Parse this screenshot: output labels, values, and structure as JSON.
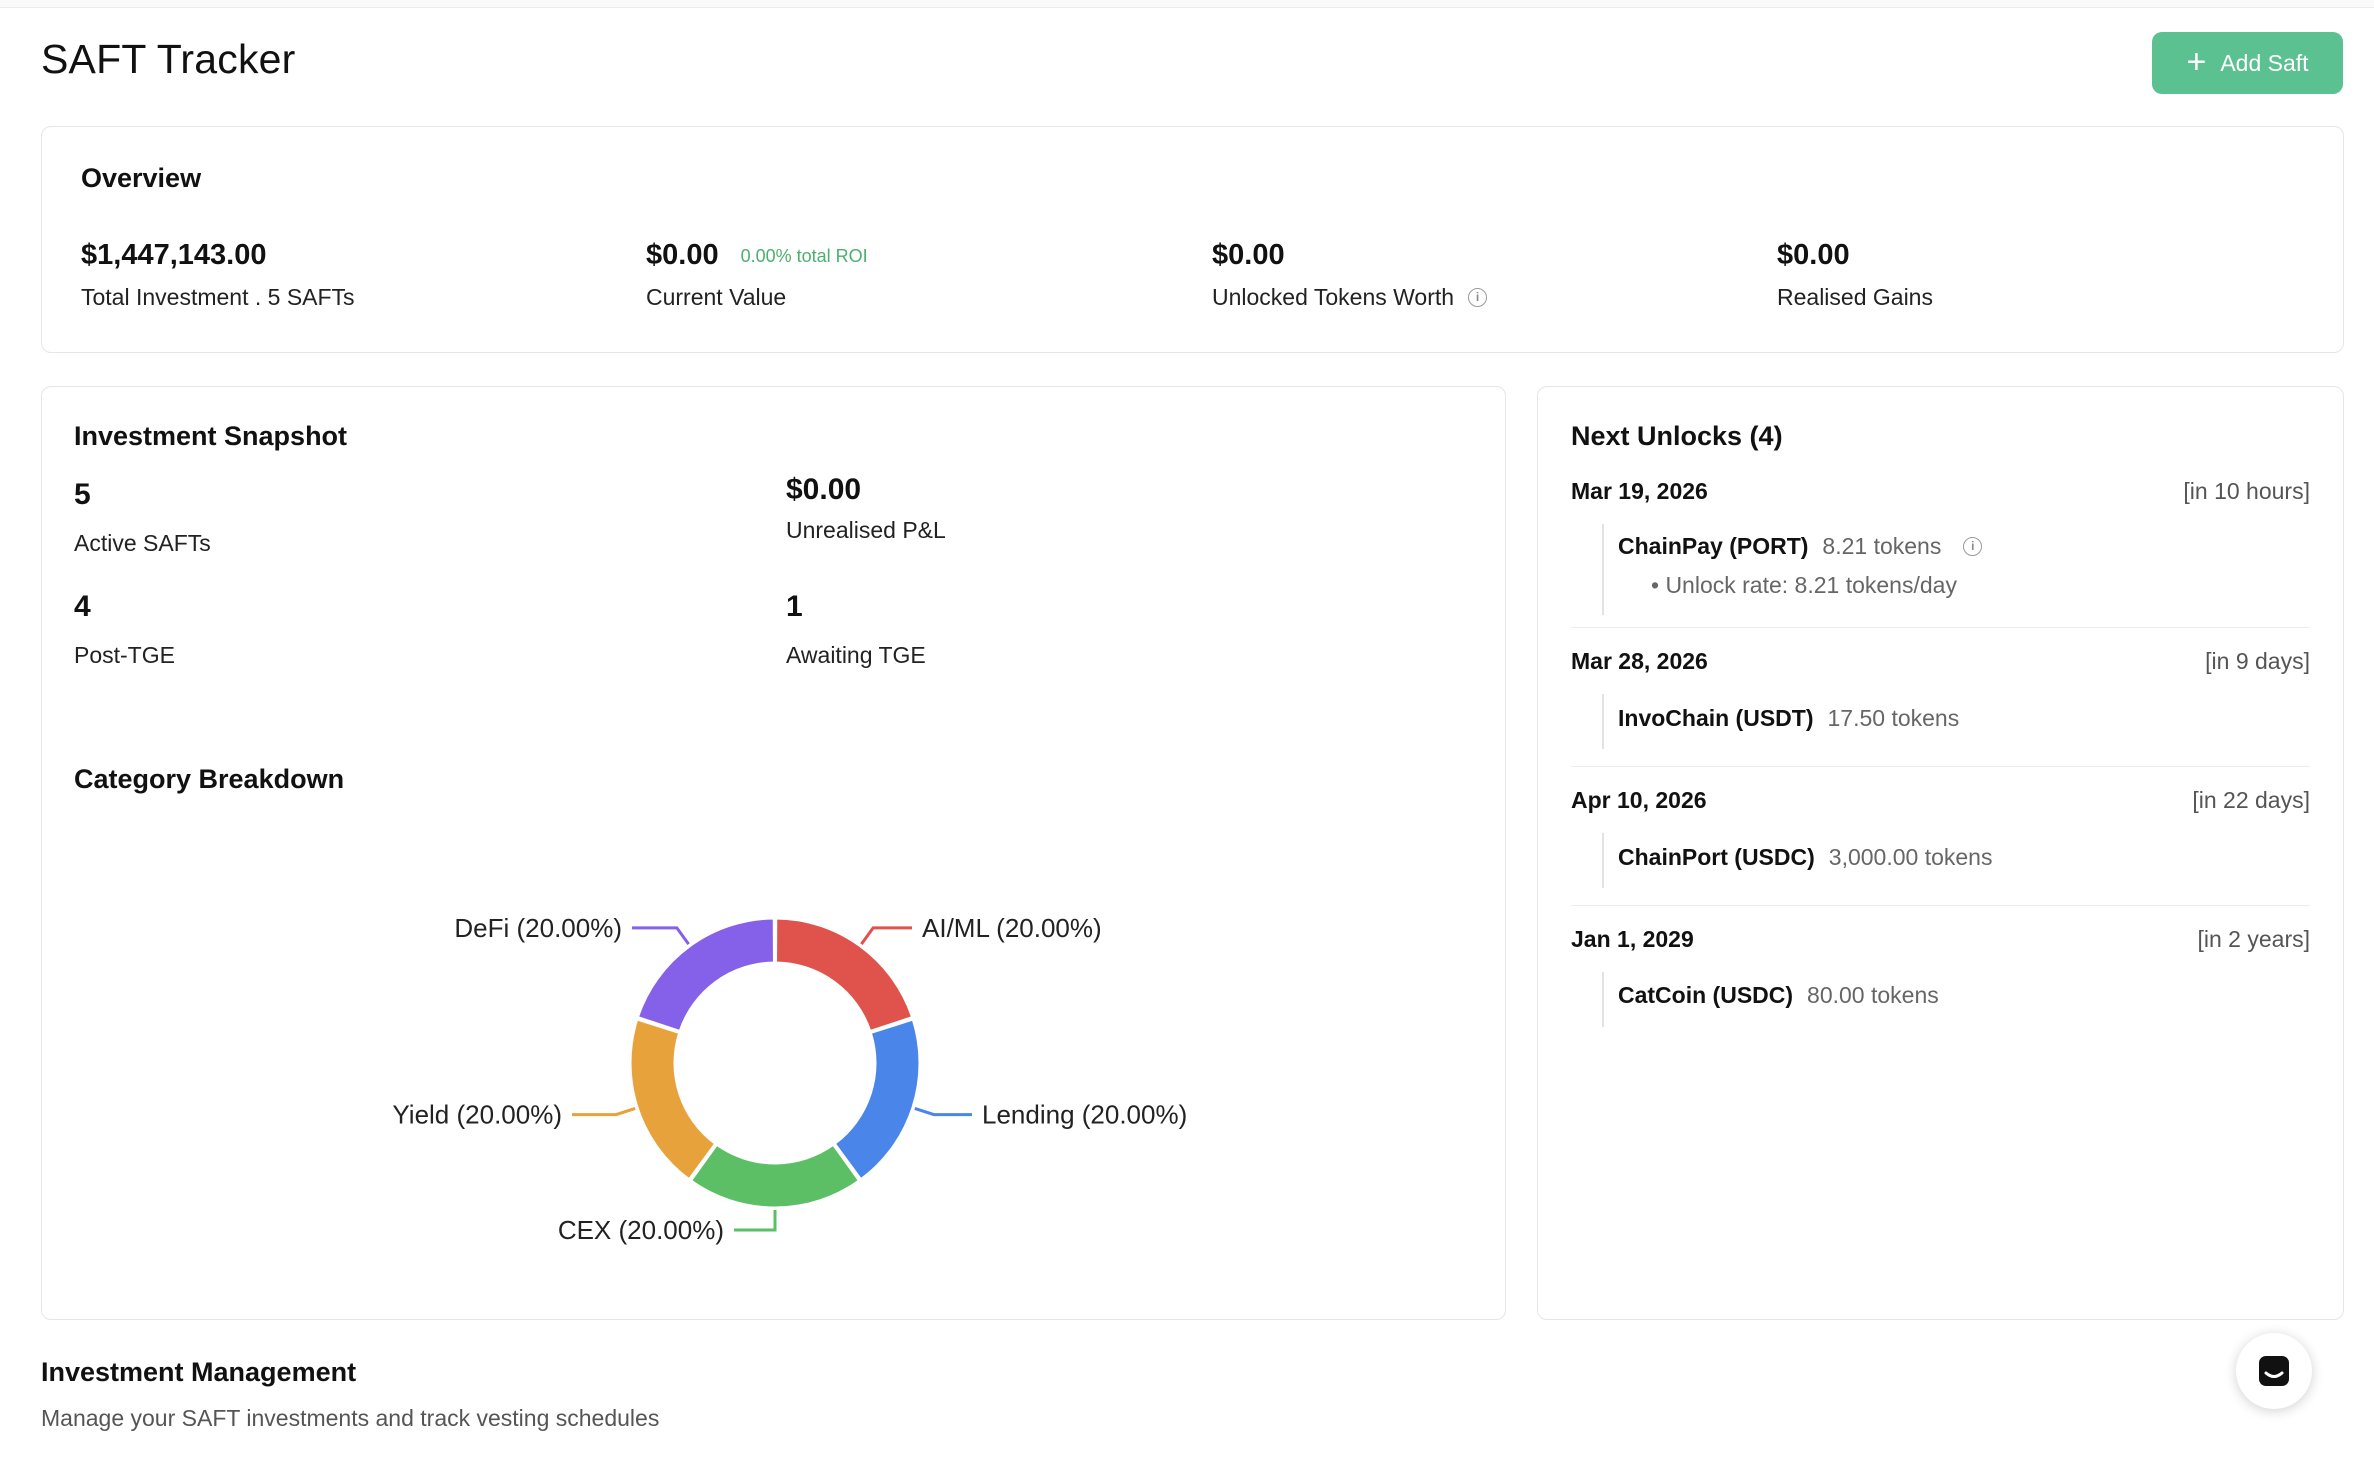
{
  "header": {
    "title": "SAFT Tracker",
    "add_button_label": "Add Saft"
  },
  "overview": {
    "title": "Overview",
    "stats": [
      {
        "value": "$1,447,143.00",
        "label": "Total Investment . 5 SAFTs"
      },
      {
        "value": "$0.00",
        "badge": "0.00% total ROI",
        "label": "Current Value"
      },
      {
        "value": "$0.00",
        "label": "Unlocked Tokens Worth"
      },
      {
        "value": "$0.00",
        "label": "Realised Gains"
      }
    ]
  },
  "snapshot": {
    "title": "Investment Snapshot",
    "active_safts": {
      "value": "5",
      "label": "Active SAFTs"
    },
    "unrealised_pl": {
      "value": "$0.00",
      "label": "Unrealised P&L"
    },
    "post_tge": {
      "value": "4",
      "label": "Post-TGE"
    },
    "awaiting_tge": {
      "value": "1",
      "label": "Awaiting TGE"
    }
  },
  "category_breakdown": {
    "title": "Category Breakdown",
    "slices": [
      {
        "label": "AI/ML (20.00%)",
        "color": "#e0524c"
      },
      {
        "label": "Lending (20.00%)",
        "color": "#4a86ea"
      },
      {
        "label": "CEX (20.00%)",
        "color": "#5cbf66"
      },
      {
        "label": "Yield (20.00%)",
        "color": "#e8a23c"
      },
      {
        "label": "DeFi (20.00%)",
        "color": "#8560e8"
      }
    ]
  },
  "chart_data": {
    "type": "pie",
    "categories": [
      "AI/ML",
      "Lending",
      "CEX",
      "Yield",
      "DeFi"
    ],
    "values": [
      20.0,
      20.0,
      20.0,
      20.0,
      20.0
    ],
    "title": "Category Breakdown",
    "donut": true
  },
  "unlocks": {
    "title": "Next Unlocks (4)",
    "items": [
      {
        "date": "Mar 19, 2026",
        "relative": "[in 10 hours]",
        "name": "ChainPay (PORT)",
        "amount": "8.21 tokens",
        "rate": "• Unlock rate: 8.21 tokens/day"
      },
      {
        "date": "Mar 28, 2026",
        "relative": "[in 9 days]",
        "name": "InvoChain (USDT)",
        "amount": "17.50 tokens"
      },
      {
        "date": "Apr 10, 2026",
        "relative": "[in 22 days]",
        "name": "ChainPort (USDC)",
        "amount": "3,000.00 tokens"
      },
      {
        "date": "Jan 1, 2029",
        "relative": "[in 2 years]",
        "name": "CatCoin (USDC)",
        "amount": "80.00 tokens"
      }
    ]
  },
  "management": {
    "title": "Investment Management",
    "subtitle": "Manage your SAFT investments and track vesting schedules"
  },
  "icons": {
    "add": "plus-icon",
    "info": "info-icon",
    "chat": "chat-icon"
  }
}
